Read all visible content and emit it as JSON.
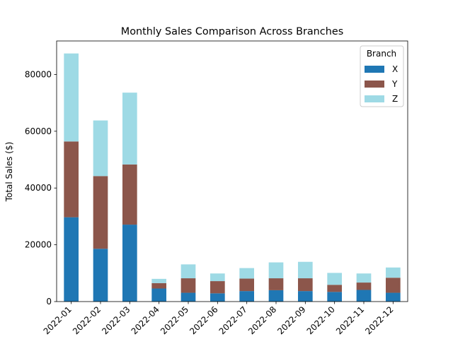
{
  "chart_data": {
    "type": "bar",
    "stacked": true,
    "title": "Monthly Sales Comparison Across Branches",
    "xlabel": "",
    "ylabel": "Total Sales ($)",
    "categories": [
      "2022-01",
      "2022-02",
      "2022-03",
      "2022-04",
      "2022-05",
      "2022-06",
      "2022-07",
      "2022-08",
      "2022-09",
      "2022-10",
      "2022-11",
      "2022-12"
    ],
    "yticks": [
      0,
      20000,
      40000,
      60000,
      80000
    ],
    "ylim": [
      0,
      91800
    ],
    "grid": false,
    "legend": {
      "title": "Branch",
      "placement": "top-right"
    },
    "series": [
      {
        "name": "X",
        "color": "#1f77b4",
        "values": [
          29700,
          18600,
          27100,
          4600,
          3100,
          2900,
          3700,
          4000,
          3700,
          3400,
          4100,
          3100
        ]
      },
      {
        "name": "Y",
        "color": "#8c564b",
        "values": [
          26700,
          25600,
          21200,
          1900,
          5100,
          4300,
          4400,
          4200,
          4500,
          2500,
          2600,
          5300
        ]
      },
      {
        "name": "Z",
        "color": "#9edae5",
        "values": [
          31000,
          19600,
          25300,
          1500,
          4900,
          2700,
          3700,
          5600,
          5800,
          4200,
          3200,
          3600
        ]
      }
    ]
  }
}
